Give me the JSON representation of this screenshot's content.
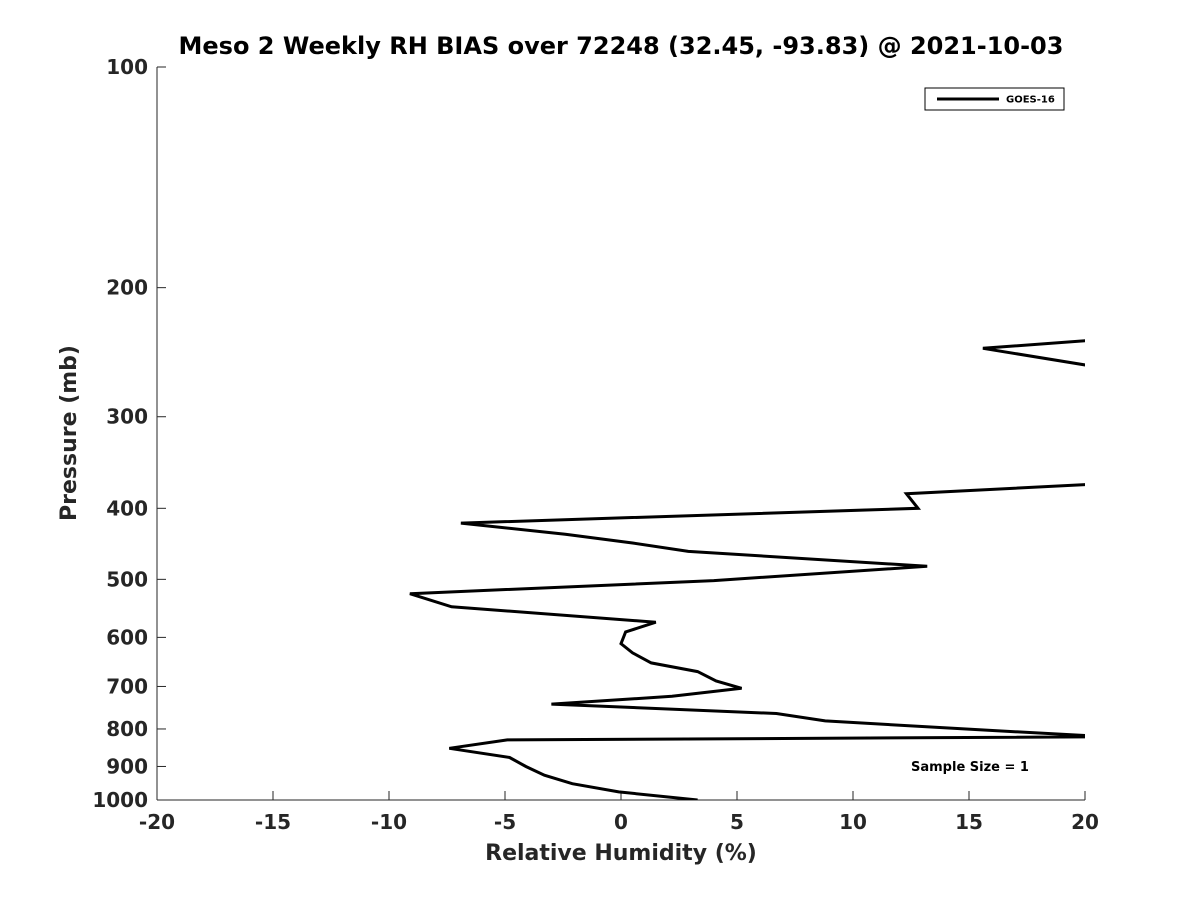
{
  "chart_data": {
    "type": "line",
    "title": "Meso 2 Weekly RH BIAS over 72248 (32.45, -93.83) @ 2021-10-03",
    "xlabel": "Relative Humidity (%)",
    "ylabel": "Pressure (mb)",
    "xlim": [
      -20,
      20
    ],
    "ylim": [
      100,
      1000
    ],
    "y_scale": "log",
    "y_reversed": true,
    "grid": false,
    "legend_position": "top-right",
    "x_ticks": [
      -20,
      -15,
      -10,
      -5,
      0,
      5,
      10,
      15,
      20
    ],
    "x_tick_labels": [
      "-20",
      "-15",
      "-10",
      "-5",
      "0",
      "5",
      "10",
      "15",
      "20"
    ],
    "y_ticks": [
      100,
      200,
      300,
      400,
      500,
      600,
      700,
      800,
      900,
      1000
    ],
    "y_tick_labels": [
      "100",
      "200",
      "300",
      "400",
      "500",
      "600",
      "700",
      "800",
      "900",
      "1000"
    ],
    "series": [
      {
        "name": "GOES-16",
        "color": "#000000",
        "points": [
          [
            3.3,
            1000
          ],
          [
            -0.1,
            975
          ],
          [
            -2.1,
            950
          ],
          [
            -3.3,
            925
          ],
          [
            -4.1,
            900
          ],
          [
            -4.8,
            875
          ],
          [
            -7.4,
            850
          ],
          [
            -4.9,
            828
          ],
          [
            21,
            820
          ],
          [
            16.3,
            805
          ],
          [
            8.8,
            780
          ],
          [
            6.7,
            762
          ],
          [
            -3.0,
            740
          ],
          [
            2.2,
            722
          ],
          [
            5.2,
            704
          ],
          [
            4.1,
            688
          ],
          [
            3.3,
            668
          ],
          [
            1.3,
            650
          ],
          [
            0.5,
            630
          ],
          [
            0.0,
            612
          ],
          [
            0.2,
            590
          ],
          [
            1.5,
            572
          ],
          [
            -7.3,
            545
          ],
          [
            -9.1,
            523
          ],
          [
            4.0,
            502
          ],
          [
            13.2,
            480
          ],
          [
            2.9,
            458
          ],
          [
            0.5,
            446
          ],
          [
            -2.4,
            434
          ],
          [
            -6.9,
            419
          ],
          [
            12.8,
            400
          ],
          [
            12.3,
            382
          ],
          [
            21,
            370
          ]
        ]
      },
      {
        "name": "GOES-16",
        "color": "#000000",
        "points": [
          [
            21,
            235
          ],
          [
            15.6,
            242
          ],
          [
            21,
            258
          ]
        ]
      }
    ],
    "legend": [
      {
        "label": "GOES-16",
        "color": "#000000"
      }
    ],
    "annotations": [
      {
        "text": "Sample Size = 1"
      }
    ]
  }
}
